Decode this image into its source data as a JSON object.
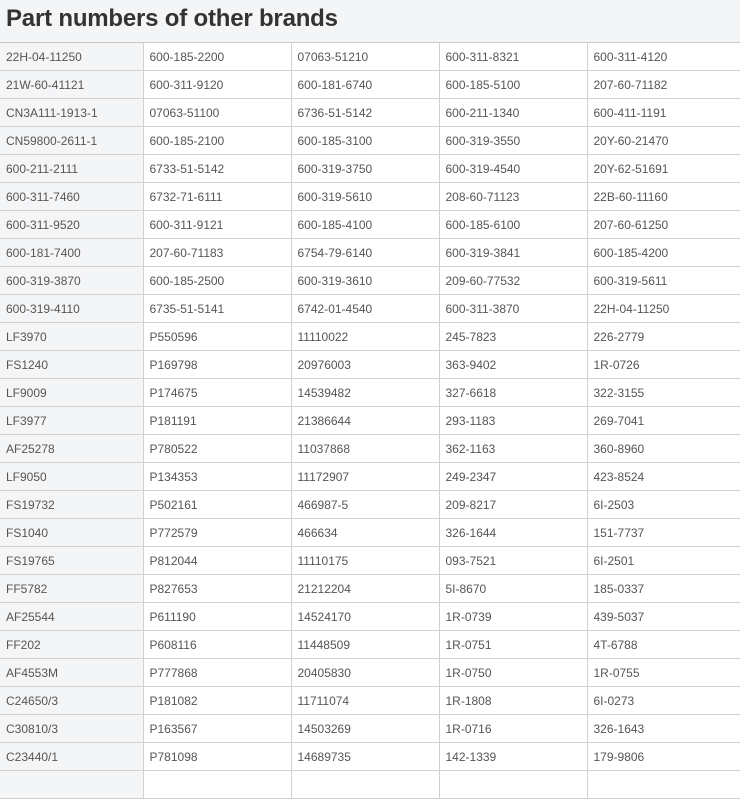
{
  "title": "Part numbers of other brands",
  "rows": [
    [
      "22H-04-11250",
      "600-185-2200",
      "07063-51210",
      "600-311-8321",
      "600-311-4120"
    ],
    [
      "21W-60-41121",
      "600-311-9120",
      "600-181-6740",
      "600-185-5100",
      "207-60-71182"
    ],
    [
      "CN3A111-1913-1",
      "07063-51100",
      "6736-51-5142",
      "600-211-1340",
      "600-411-1191"
    ],
    [
      "CN59800-2611-1",
      "600-185-2100",
      "600-185-3100",
      "600-319-3550",
      "20Y-60-21470"
    ],
    [
      "600-211-2111",
      "6733-51-5142",
      "600-319-3750",
      "600-319-4540",
      "20Y-62-51691"
    ],
    [
      "600-311-7460",
      "6732-71-6111",
      "600-319-5610",
      "208-60-71123",
      "22B-60-11160"
    ],
    [
      "600-311-9520",
      "600-311-9121",
      "600-185-4100",
      "600-185-6100",
      "207-60-61250"
    ],
    [
      "600-181-7400",
      "207-60-71183",
      "6754-79-6140",
      "600-319-3841",
      "600-185-4200"
    ],
    [
      "600-319-3870",
      "600-185-2500",
      "600-319-3610",
      "209-60-77532",
      "600-319-5611"
    ],
    [
      "600-319-4110",
      "6735-51-5141",
      "6742-01-4540",
      "600-311-3870",
      "22H-04-11250"
    ],
    [
      "LF3970",
      "P550596",
      "11110022",
      "245-7823",
      "226-2779"
    ],
    [
      "FS1240",
      "P169798",
      "20976003",
      "363-9402",
      "1R-0726"
    ],
    [
      "LF9009",
      "P174675",
      "14539482",
      "327-6618",
      "322-3155"
    ],
    [
      "LF3977",
      "P181191",
      "21386644",
      "293-1183",
      "269-7041"
    ],
    [
      "AF25278",
      "P780522",
      "11037868",
      "362-1163",
      "360-8960"
    ],
    [
      "LF9050",
      "P134353",
      "11172907",
      "249-2347",
      "423-8524"
    ],
    [
      "FS19732",
      "P502161",
      "466987-5",
      "209-8217",
      "6I-2503"
    ],
    [
      "FS1040",
      "P772579",
      "466634",
      "326-1644",
      "151-7737"
    ],
    [
      "FS19765",
      "P812044",
      "11110175",
      "093-7521",
      "6I-2501"
    ],
    [
      "FF5782",
      "P827653",
      "21212204",
      "5I-8670",
      "185-0337"
    ],
    [
      "AF25544",
      "P611190",
      "14524170",
      "1R-0739",
      "439-5037"
    ],
    [
      "FF202",
      "P608116",
      "11448509",
      "1R-0751",
      "4T-6788"
    ],
    [
      "AF4553M",
      "P777868",
      "20405830",
      "1R-0750",
      "1R-0755"
    ],
    [
      "C24650/3",
      "P181082",
      "11711074",
      "1R-1808",
      "6I-0273"
    ],
    [
      "C30810/3",
      "P163567",
      "14503269",
      "1R-0716",
      "326-1643"
    ],
    [
      "C23440/1",
      "P781098",
      "14689735",
      "142-1339",
      "179-9806"
    ],
    [
      "",
      "",
      "",
      "",
      ""
    ]
  ]
}
